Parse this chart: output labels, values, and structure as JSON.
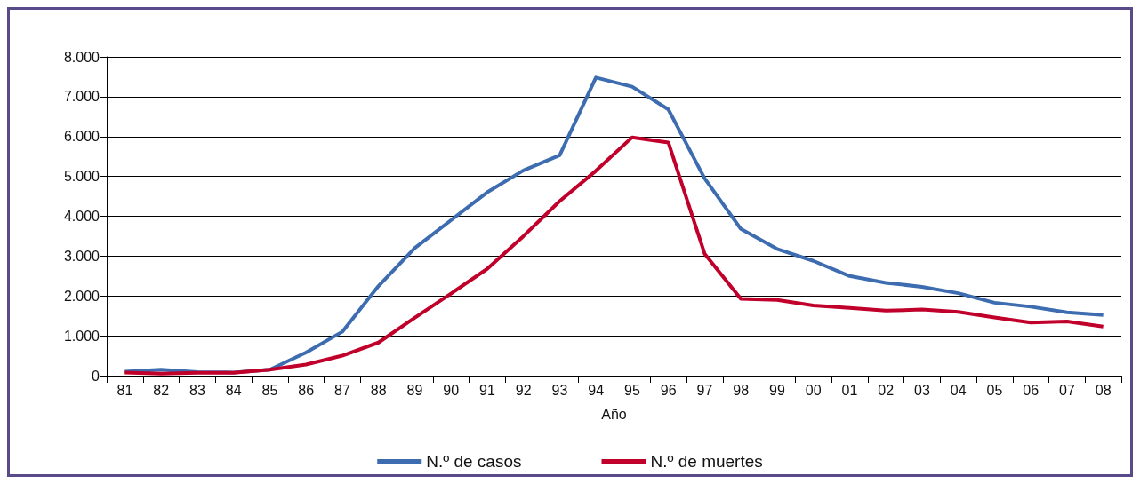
{
  "chart_data": {
    "type": "line",
    "xlabel": "Año",
    "categories": [
      "81",
      "82",
      "83",
      "84",
      "85",
      "86",
      "87",
      "88",
      "89",
      "90",
      "91",
      "92",
      "93",
      "94",
      "95",
      "96",
      "97",
      "98",
      "99",
      "00",
      "01",
      "02",
      "03",
      "04",
      "05",
      "06",
      "07",
      "08"
    ],
    "series": [
      {
        "name": "N.º de casos",
        "color": "#3d6cb0",
        "values": [
          100,
          150,
          90,
          80,
          150,
          580,
          1100,
          2250,
          3200,
          3900,
          4600,
          5150,
          5530,
          7480,
          7250,
          6680,
          4950,
          3680,
          3180,
          2880,
          2500,
          2330,
          2230,
          2070,
          1830,
          1730,
          1590,
          1520
        ]
      },
      {
        "name": "N.º de muertes",
        "color": "#c0002a",
        "values": [
          80,
          50,
          70,
          70,
          150,
          280,
          500,
          830,
          1450,
          2060,
          2680,
          3500,
          4380,
          5140,
          5980,
          5850,
          3060,
          1930,
          1900,
          1760,
          1700,
          1630,
          1660,
          1600,
          1460,
          1330,
          1360,
          1230
        ]
      }
    ],
    "ylim": [
      0,
      8000
    ],
    "yticks": [
      {
        "value": 0,
        "label": "0"
      },
      {
        "value": 1000,
        "label": "1.000"
      },
      {
        "value": 2000,
        "label": "2.000"
      },
      {
        "value": 3000,
        "label": "3.000"
      },
      {
        "value": 4000,
        "label": "4.000"
      },
      {
        "value": 5000,
        "label": "5.000"
      },
      {
        "value": 6000,
        "label": "6.000"
      },
      {
        "value": 7000,
        "label": "7.000"
      },
      {
        "value": 8000,
        "label": "8.000"
      }
    ],
    "grid": "y",
    "legend": "bottom",
    "marker": "none",
    "line_style": "solid"
  }
}
